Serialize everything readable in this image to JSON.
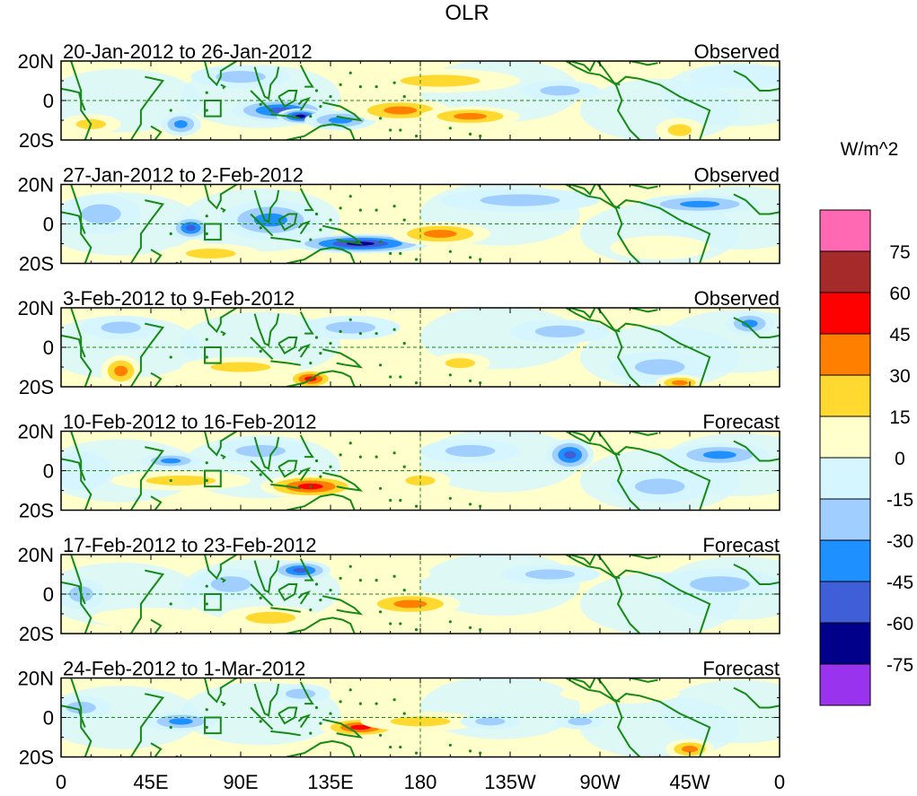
{
  "chart_data": {
    "type": "heatmap",
    "title": "OLR",
    "units": "W/m^2",
    "x_ticks": [
      "0",
      "45E",
      "90E",
      "135E",
      "180",
      "135W",
      "90W",
      "45W",
      "0"
    ],
    "y_ticks": [
      "20N",
      "0",
      "20S"
    ],
    "x_domain_deg": [
      0,
      360
    ],
    "y_domain_deg": [
      -20,
      20
    ],
    "colorbar": {
      "colors": [
        "#9933ee",
        "#00008b",
        "#3f5fd9",
        "#1e90ff",
        "#a0cfff",
        "#d6f6ff",
        "#ffffcc",
        "#ffd92f",
        "#ff7f00",
        "#ff0000",
        "#a52a2a",
        "#ff69b4"
      ],
      "labels": [
        "-75",
        "-60",
        "-45",
        "-30",
        "-15",
        "0",
        "15",
        "30",
        "45",
        "60",
        "75"
      ]
    },
    "panels": [
      {
        "period": "20-Jan-2012 to 26-Jan-2012",
        "kind": "Observed",
        "anomalies": [
          {
            "lon": 110,
            "lat": -5,
            "rlon": 25,
            "rlat": 6,
            "value": -50
          },
          {
            "lon": 120,
            "lat": -8,
            "rlon": 12,
            "rlat": 4,
            "value": -70
          },
          {
            "lon": 140,
            "lat": -10,
            "rlon": 18,
            "rlat": 5,
            "value": -35
          },
          {
            "lon": 60,
            "lat": -12,
            "rlon": 10,
            "rlat": 6,
            "value": -40
          },
          {
            "lon": 90,
            "lat": 12,
            "rlon": 25,
            "rlat": 6,
            "value": -20
          },
          {
            "lon": 170,
            "lat": -5,
            "rlon": 25,
            "rlat": 6,
            "value": 45
          },
          {
            "lon": 205,
            "lat": -8,
            "rlon": 25,
            "rlat": 5,
            "value": 35
          },
          {
            "lon": 190,
            "lat": 10,
            "rlon": 40,
            "rlat": 6,
            "value": 20
          },
          {
            "lon": 15,
            "lat": -12,
            "rlon": 15,
            "rlat": 5,
            "value": 25
          },
          {
            "lon": 250,
            "lat": 5,
            "rlon": 20,
            "rlat": 5,
            "value": -25
          },
          {
            "lon": 340,
            "lat": 12,
            "rlon": 25,
            "rlat": 6,
            "value": -15
          },
          {
            "lon": 310,
            "lat": -15,
            "rlon": 12,
            "rlat": 6,
            "value": 20
          }
        ]
      },
      {
        "period": "27-Jan-2012 to 2-Feb-2012",
        "kind": "Observed",
        "anomalies": [
          {
            "lon": 150,
            "lat": -10,
            "rlon": 35,
            "rlat": 5,
            "value": -65
          },
          {
            "lon": 105,
            "lat": 2,
            "rlon": 25,
            "rlat": 10,
            "value": -35
          },
          {
            "lon": 65,
            "lat": -2,
            "rlon": 10,
            "rlat": 6,
            "value": -55
          },
          {
            "lon": 190,
            "lat": -5,
            "rlon": 25,
            "rlat": 6,
            "value": 40
          },
          {
            "lon": 75,
            "lat": -15,
            "rlon": 25,
            "rlat": 5,
            "value": 30
          },
          {
            "lon": 20,
            "lat": 5,
            "rlon": 20,
            "rlat": 10,
            "value": -20
          },
          {
            "lon": 230,
            "lat": 12,
            "rlon": 40,
            "rlat": 6,
            "value": -25
          },
          {
            "lon": 320,
            "lat": 10,
            "rlon": 30,
            "rlat": 5,
            "value": -45
          },
          {
            "lon": 300,
            "lat": -12,
            "rlon": 25,
            "rlat": 6,
            "value": 15
          }
        ]
      },
      {
        "period": "3-Feb-2012 to 9-Feb-2012",
        "kind": "Observed",
        "anomalies": [
          {
            "lon": 125,
            "lat": -16,
            "rlon": 12,
            "rlat": 5,
            "value": 50
          },
          {
            "lon": 90,
            "lat": -10,
            "rlon": 30,
            "rlat": 5,
            "value": 30
          },
          {
            "lon": 30,
            "lat": -12,
            "rlon": 10,
            "rlat": 8,
            "value": 35
          },
          {
            "lon": 200,
            "lat": -8,
            "rlon": 15,
            "rlat": 5,
            "value": 30
          },
          {
            "lon": 250,
            "lat": 8,
            "rlon": 25,
            "rlat": 6,
            "value": -30
          },
          {
            "lon": 145,
            "lat": 10,
            "rlon": 25,
            "rlat": 6,
            "value": -30
          },
          {
            "lon": 30,
            "lat": 10,
            "rlon": 20,
            "rlat": 6,
            "value": -20
          },
          {
            "lon": 300,
            "lat": -10,
            "rlon": 25,
            "rlat": 8,
            "value": -20
          },
          {
            "lon": 310,
            "lat": -18,
            "rlon": 12,
            "rlat": 4,
            "value": 40
          },
          {
            "lon": 345,
            "lat": 12,
            "rlon": 12,
            "rlat": 6,
            "value": -40
          }
        ]
      },
      {
        "period": "10-Feb-2012 to 16-Feb-2012",
        "kind": "Forecast",
        "anomalies": [
          {
            "lon": 125,
            "lat": -8,
            "rlon": 25,
            "rlat": 6,
            "value": 50
          },
          {
            "lon": 60,
            "lat": -5,
            "rlon": 35,
            "rlat": 5,
            "value": 30
          },
          {
            "lon": 180,
            "lat": -5,
            "rlon": 15,
            "rlat": 5,
            "value": 30
          },
          {
            "lon": 255,
            "lat": 8,
            "rlon": 12,
            "rlat": 8,
            "value": -55
          },
          {
            "lon": 330,
            "lat": 8,
            "rlon": 25,
            "rlat": 6,
            "value": -40
          },
          {
            "lon": 55,
            "lat": 5,
            "rlon": 15,
            "rlat": 4,
            "value": -35
          },
          {
            "lon": 100,
            "lat": 10,
            "rlon": 25,
            "rlat": 6,
            "value": -20
          },
          {
            "lon": 205,
            "lat": 10,
            "rlon": 25,
            "rlat": 6,
            "value": -20
          },
          {
            "lon": 10,
            "lat": 0,
            "rlon": 15,
            "rlat": 10,
            "value": -15
          },
          {
            "lon": 300,
            "lat": -8,
            "rlon": 25,
            "rlat": 8,
            "value": -20
          }
        ]
      },
      {
        "period": "17-Feb-2012 to 23-Feb-2012",
        "kind": "Forecast",
        "anomalies": [
          {
            "lon": 175,
            "lat": -5,
            "rlon": 25,
            "rlat": 6,
            "value": 45
          },
          {
            "lon": 105,
            "lat": -12,
            "rlon": 25,
            "rlat": 6,
            "value": 30
          },
          {
            "lon": 45,
            "lat": -12,
            "rlon": 30,
            "rlat": 5,
            "value": 15
          },
          {
            "lon": 120,
            "lat": 12,
            "rlon": 15,
            "rlat": 5,
            "value": -55
          },
          {
            "lon": 85,
            "lat": 5,
            "rlon": 20,
            "rlat": 8,
            "value": -30
          },
          {
            "lon": 245,
            "lat": 10,
            "rlon": 25,
            "rlat": 5,
            "value": -30
          },
          {
            "lon": 330,
            "lat": 5,
            "rlon": 30,
            "rlat": 8,
            "value": -20
          },
          {
            "lon": 10,
            "lat": 0,
            "rlon": 12,
            "rlat": 8,
            "value": -20
          },
          {
            "lon": 160,
            "lat": 10,
            "rlon": 25,
            "rlat": 5,
            "value": 15
          }
        ]
      },
      {
        "period": "24-Feb-2012 to 1-Mar-2012",
        "kind": "Forecast",
        "anomalies": [
          {
            "lon": 150,
            "lat": -5,
            "rlon": 20,
            "rlat": 5,
            "value": 50
          },
          {
            "lon": 180,
            "lat": -2,
            "rlon": 30,
            "rlat": 5,
            "value": 20
          },
          {
            "lon": 60,
            "lat": -2,
            "rlon": 18,
            "rlat": 5,
            "value": -35
          },
          {
            "lon": 120,
            "lat": 12,
            "rlon": 15,
            "rlat": 5,
            "value": -30
          },
          {
            "lon": 215,
            "lat": -2,
            "rlon": 15,
            "rlat": 4,
            "value": -25
          },
          {
            "lon": 260,
            "lat": -2,
            "rlon": 12,
            "rlat": 4,
            "value": -25
          },
          {
            "lon": 315,
            "lat": -16,
            "rlon": 12,
            "rlat": 5,
            "value": 35
          },
          {
            "lon": 10,
            "lat": 5,
            "rlon": 15,
            "rlat": 6,
            "value": -20
          },
          {
            "lon": 280,
            "lat": 12,
            "rlon": 30,
            "rlat": 5,
            "value": 15
          }
        ]
      }
    ]
  }
}
